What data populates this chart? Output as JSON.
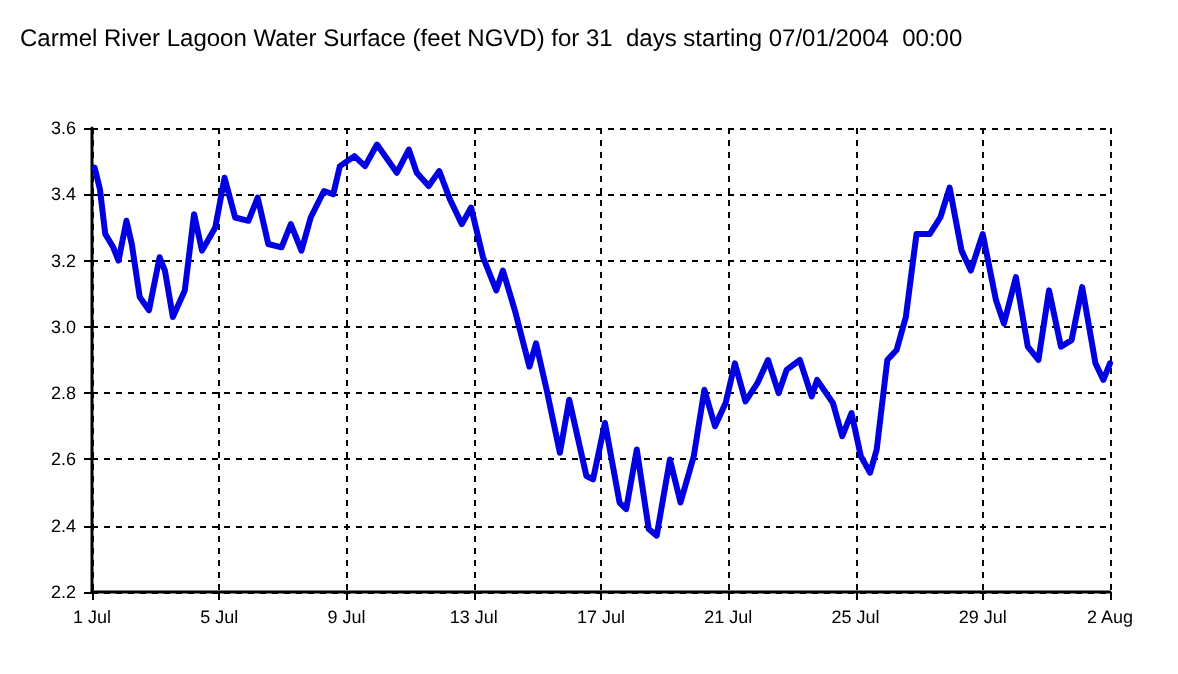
{
  "chart_data": {
    "type": "line",
    "title": "Carmel River Lagoon Water Surface (feet NGVD) for 31  days starting 07/01/2004  00:00",
    "x": [
      "2004-07-01T02:00",
      "2004-07-01T06:00",
      "2004-07-01T10:00",
      "2004-07-01T16:00",
      "2004-07-01T20:00",
      "2004-07-02T02:00",
      "2004-07-02T06:00",
      "2004-07-02T12:00",
      "2004-07-02T19:00",
      "2004-07-03T03:00",
      "2004-07-03T07:00",
      "2004-07-03T13:00",
      "2004-07-03T22:00",
      "2004-07-04T05:00",
      "2004-07-04T11:00",
      "2004-07-04T21:00",
      "2004-07-05T04:00",
      "2004-07-05T12:00",
      "2004-07-05T22:00",
      "2004-07-06T05:00",
      "2004-07-06T13:00",
      "2004-07-06T23:00",
      "2004-07-07T06:00",
      "2004-07-07T14:00",
      "2004-07-07T21:00",
      "2004-07-08T07:00",
      "2004-07-08T14:00",
      "2004-07-08T19:00",
      "2004-07-09T06:00",
      "2004-07-09T14:00",
      "2004-07-09T23:00",
      "2004-07-10T14:00",
      "2004-07-10T23:00",
      "2004-07-11T05:00",
      "2004-07-11T14:00",
      "2004-07-11T22:00",
      "2004-07-12T06:00",
      "2004-07-12T15:00",
      "2004-07-12T22:00",
      "2004-07-13T07:00",
      "2004-07-13T17:00",
      "2004-07-13T22:00",
      "2004-07-14T07:00",
      "2004-07-14T18:00",
      "2004-07-14T23:00",
      "2004-07-15T07:00",
      "2004-07-15T17:00",
      "2004-07-16T00:00",
      "2004-07-16T13:00",
      "2004-07-16T18:00",
      "2004-07-17T03:00",
      "2004-07-17T14:00",
      "2004-07-17T19:00",
      "2004-07-18T03:00",
      "2004-07-18T12:00",
      "2004-07-18T18:00",
      "2004-07-19T04:00",
      "2004-07-19T12:00",
      "2004-07-19T22:00",
      "2004-07-20T06:00",
      "2004-07-20T14:00",
      "2004-07-20T22:00",
      "2004-07-21T05:00",
      "2004-07-21T13:00",
      "2004-07-21T22:00",
      "2004-07-22T06:00",
      "2004-07-22T14:00",
      "2004-07-22T20:00",
      "2004-07-23T06:00",
      "2004-07-23T15:00",
      "2004-07-23T19:00",
      "2004-07-24T07:00",
      "2004-07-24T14:00",
      "2004-07-24T21:00",
      "2004-07-25T04:00",
      "2004-07-25T11:00",
      "2004-07-25T16:00",
      "2004-07-26T00:00",
      "2004-07-26T07:00",
      "2004-07-26T14:00",
      "2004-07-26T22:00",
      "2004-07-27T08:00",
      "2004-07-27T16:00",
      "2004-07-27T23:00",
      "2004-07-28T08:00",
      "2004-07-28T15:00",
      "2004-07-29T00:00",
      "2004-07-29T10:00",
      "2004-07-29T16:00",
      "2004-07-30T01:00",
      "2004-07-30T10:00",
      "2004-07-30T18:00",
      "2004-07-31T02:00",
      "2004-07-31T11:00",
      "2004-07-31T19:00",
      "2004-08-01T03:00",
      "2004-08-01T13:00",
      "2004-08-01T19:00",
      "2004-08-02T00:00"
    ],
    "series": [
      {
        "color": "#0000e0",
        "values": [
          3.48,
          3.415,
          3.28,
          3.24,
          3.2,
          3.32,
          3.25,
          3.09,
          3.05,
          3.21,
          3.17,
          3.03,
          3.11,
          3.34,
          3.23,
          3.3,
          3.45,
          3.33,
          3.32,
          3.39,
          3.25,
          3.24,
          3.31,
          3.23,
          3.33,
          3.41,
          3.4,
          3.485,
          3.515,
          3.485,
          3.55,
          3.465,
          3.535,
          3.465,
          3.425,
          3.47,
          3.385,
          3.31,
          3.36,
          3.21,
          3.11,
          3.17,
          3.05,
          2.88,
          2.95,
          2.81,
          2.62,
          2.78,
          2.55,
          2.54,
          2.71,
          2.47,
          2.45,
          2.63,
          2.39,
          2.37,
          2.6,
          2.47,
          2.61,
          2.81,
          2.7,
          2.77,
          2.89,
          2.775,
          2.83,
          2.9,
          2.8,
          2.87,
          2.9,
          2.79,
          2.84,
          2.77,
          2.67,
          2.74,
          2.61,
          2.56,
          2.63,
          2.9,
          2.93,
          3.03,
          3.28,
          3.28,
          3.33,
          3.42,
          3.23,
          3.17,
          3.28,
          3.08,
          3.01,
          3.15,
          2.94,
          2.9,
          3.11,
          2.94,
          2.96,
          3.12,
          2.89,
          2.84,
          2.89
        ]
      }
    ],
    "xlim": [
      "2004-07-01",
      "2004-08-02"
    ],
    "xticks": [
      {
        "value": "2004-07-01",
        "label": "1 Jul"
      },
      {
        "value": "2004-07-05",
        "label": "5 Jul"
      },
      {
        "value": "2004-07-09",
        "label": "9 Jul"
      },
      {
        "value": "2004-07-13",
        "label": "13 Jul"
      },
      {
        "value": "2004-07-17",
        "label": "17 Jul"
      },
      {
        "value": "2004-07-21",
        "label": "21 Jul"
      },
      {
        "value": "2004-07-25",
        "label": "25 Jul"
      },
      {
        "value": "2004-07-29",
        "label": "29 Jul"
      },
      {
        "value": "2004-08-02",
        "label": "2 Aug"
      }
    ],
    "ylim": [
      2.2,
      3.6
    ],
    "yticks": [
      2.2,
      2.4,
      2.6,
      2.8,
      {
        "value": 3,
        "label": "3.0"
      },
      3.2,
      3.4,
      3.6
    ],
    "grid": true,
    "marker": "none",
    "line_style": "solid"
  }
}
